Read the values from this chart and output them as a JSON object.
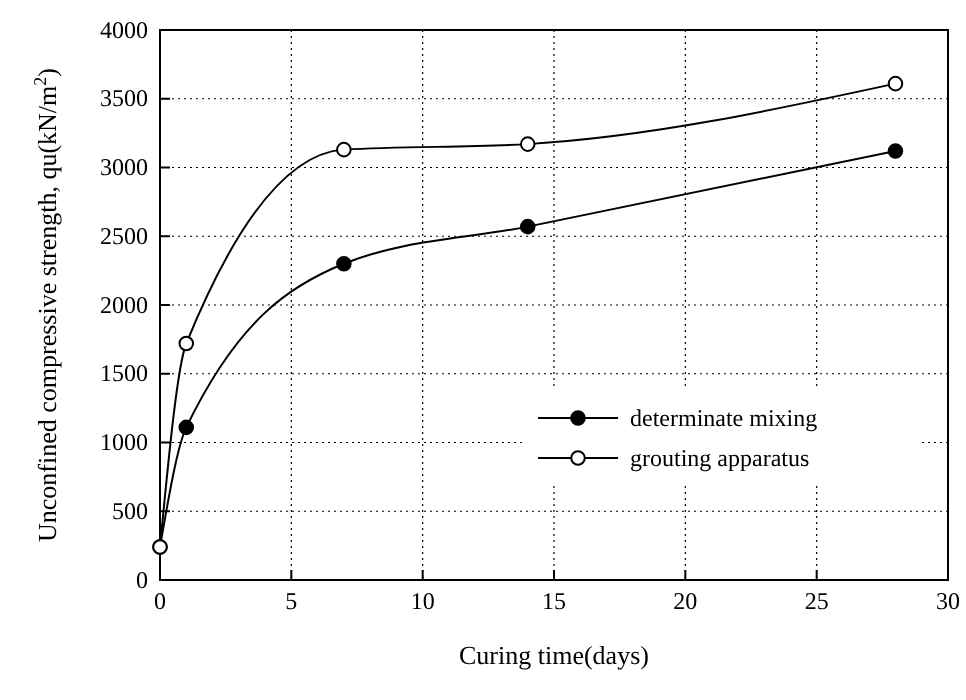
{
  "chart_data": {
    "type": "line",
    "xlabel": "Curing time(days)",
    "ylabel": "Unconfined compressive strength, qu(kN/m$^{2}$)",
    "xlim": [
      0,
      30
    ],
    "xticks": [
      0,
      5,
      10,
      15,
      20,
      25,
      30
    ],
    "ylim": [
      0,
      4000
    ],
    "yticks": [
      0,
      500,
      1000,
      1500,
      2000,
      2500,
      3000,
      3500,
      4000
    ],
    "grid": true,
    "legend": "bottom right",
    "marker": "circle",
    "line_style": "solid",
    "series": [
      {
        "name": "determinate mixing",
        "color": "#000000",
        "x": [
          0,
          1,
          7,
          14,
          28
        ],
        "values": [
          240,
          1110,
          2300,
          2570,
          3120
        ]
      },
      {
        "name": "grouting apparatus",
        "color": "#ffffff",
        "x": [
          0,
          1,
          7,
          14,
          28
        ],
        "values": [
          240,
          1720,
          3130,
          3170,
          3610
        ]
      }
    ]
  }
}
